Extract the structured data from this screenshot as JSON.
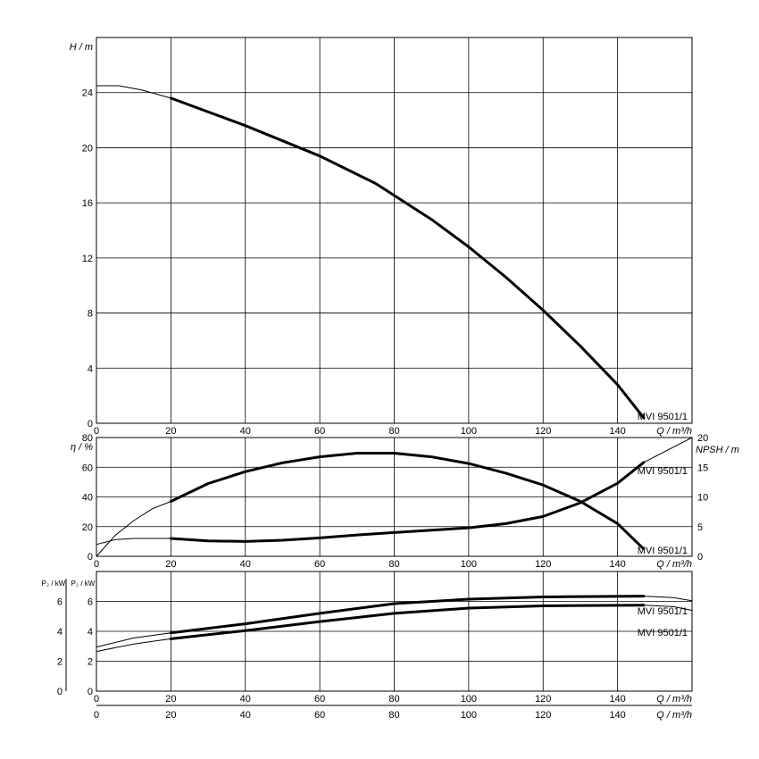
{
  "chart_data": [
    {
      "id": "head",
      "type": "line",
      "ylabel": "H / m",
      "xlabel": "Q / m³/h",
      "xlim": [
        0,
        160
      ],
      "ylim": [
        0,
        28
      ],
      "xticks": [
        0,
        20,
        40,
        60,
        80,
        100,
        120,
        140
      ],
      "yticks": [
        0,
        4,
        8,
        12,
        16,
        20,
        24
      ],
      "grid": true,
      "series": [
        {
          "name": "MVI 9501/1",
          "thin": {
            "x": [
              0,
              6,
              12,
              20
            ],
            "y": [
              24.5,
              24.5,
              24.2,
              23.6
            ]
          },
          "thick": {
            "x": [
              20,
              40,
              60,
              75,
              90,
              100,
              110,
              120,
              130,
              140,
              147
            ],
            "y": [
              23.6,
              21.6,
              19.4,
              17.4,
              14.8,
              12.8,
              10.6,
              8.2,
              5.6,
              2.8,
              0.4
            ]
          }
        }
      ]
    },
    {
      "id": "efficiency-npsh",
      "type": "line",
      "ylabel": "η / %",
      "y2label": "NPSH / m",
      "xlabel": "Q / m³/h",
      "xlim": [
        0,
        160
      ],
      "ylim": [
        0,
        80
      ],
      "y2lim": [
        0,
        20
      ],
      "xticks": [
        0,
        20,
        40,
        60,
        80,
        100,
        120,
        140
      ],
      "yticks": [
        0,
        20,
        40,
        60,
        80
      ],
      "y2ticks": [
        0,
        5,
        10,
        15,
        20
      ],
      "grid": true,
      "series": [
        {
          "name": "MVI 9501/1",
          "axis": "left",
          "label_at_end": "top",
          "thin": {
            "x": [
              0,
              5,
              10,
              15,
              20
            ],
            "y": [
              0,
              14,
              24,
              32,
              37
            ]
          },
          "thick": {
            "x": [
              20,
              30,
              40,
              50,
              60,
              70,
              80,
              90,
              100,
              110,
              120,
              130,
              140,
              147
            ],
            "y": [
              37,
              49,
              57,
              63,
              67,
              69.5,
              69.5,
              67,
              62.5,
              56,
              48,
              37,
              22,
              5
            ]
          }
        },
        {
          "name": "MVI 9501/1",
          "axis": "right",
          "label_at_end": "bottom",
          "thin": {
            "x": [
              0,
              5,
              10,
              20
            ],
            "y": [
              2.0,
              2.8,
              3.0,
              3.0
            ]
          },
          "thick": {
            "x": [
              20,
              30,
              40,
              50,
              60,
              70,
              80,
              90,
              100,
              110,
              120,
              130,
              140,
              147
            ],
            "y": [
              3.0,
              2.6,
              2.5,
              2.7,
              3.1,
              3.6,
              4.0,
              4.4,
              4.8,
              5.5,
              6.7,
              9.0,
              12.3,
              15.8
            ]
          },
          "thin_after": {
            "x": [
              147,
              160
            ],
            "y": [
              15.8,
              20.0
            ]
          }
        }
      ]
    },
    {
      "id": "power",
      "type": "line",
      "ylabel": "P₂ / kW",
      "y_outer_label": "P₂ / kW",
      "xlabel": "Q / m³/h",
      "xlim": [
        0,
        160
      ],
      "ylim": [
        0,
        8
      ],
      "y_outer_lim": [
        0,
        8
      ],
      "xticks": [
        0,
        20,
        40,
        60,
        80,
        100,
        120,
        140
      ],
      "yticks": [
        0,
        2,
        4,
        6
      ],
      "y_outer_ticks": [
        0,
        2,
        4,
        6
      ],
      "grid": true,
      "series": [
        {
          "name": "MVI 9501/1",
          "thin": {
            "x": [
              0,
              10,
              20
            ],
            "y": [
              2.95,
              3.55,
              3.9
            ]
          },
          "thick": {
            "x": [
              20,
              40,
              60,
              80,
              100,
              120,
              147
            ],
            "y": [
              3.9,
              4.5,
              5.2,
              5.85,
              6.15,
              6.3,
              6.35
            ]
          },
          "thin_after": {
            "x": [
              147,
              155,
              160
            ],
            "y": [
              6.35,
              6.25,
              6.05
            ]
          }
        },
        {
          "name": "MVI 9501/1",
          "thin": {
            "x": [
              0,
              10,
              20
            ],
            "y": [
              2.65,
              3.15,
              3.5
            ]
          },
          "thick": {
            "x": [
              20,
              40,
              60,
              80,
              100,
              120,
              147
            ],
            "y": [
              3.5,
              4.05,
              4.65,
              5.2,
              5.55,
              5.7,
              5.75
            ]
          },
          "thin_after": {
            "x": [
              147,
              155,
              160
            ],
            "y": [
              5.75,
              5.65,
              5.4
            ]
          }
        }
      ]
    }
  ]
}
